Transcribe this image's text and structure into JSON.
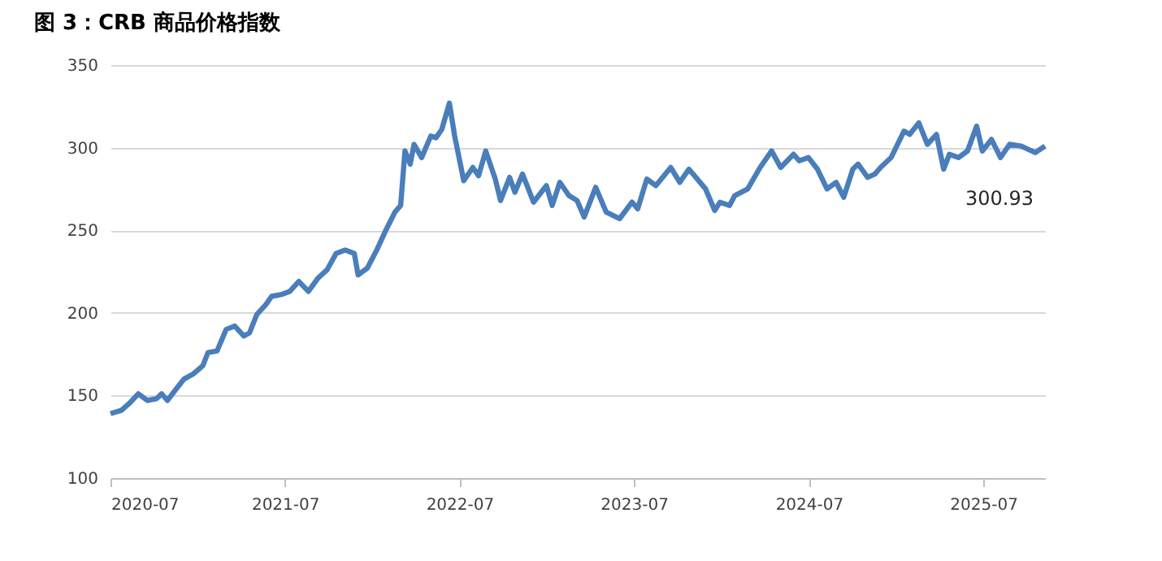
{
  "chart_data": {
    "type": "line",
    "title": "图 3：CRB 商品价格指数",
    "x": [
      "2020-07-01",
      "2020-07-24",
      "2020-08-12",
      "2020-08-28",
      "2020-09-16",
      "2020-10-05",
      "2020-10-16",
      "2020-10-28",
      "2020-11-13",
      "2020-12-02",
      "2020-12-21",
      "2021-01-10",
      "2021-01-21",
      "2021-02-09",
      "2021-02-28",
      "2021-03-18",
      "2021-04-06",
      "2021-04-18",
      "2021-05-03",
      "2021-05-22",
      "2021-06-03",
      "2021-06-22",
      "2021-07-11",
      "2021-07-30",
      "2021-08-19",
      "2021-09-08",
      "2021-09-27",
      "2021-10-16",
      "2021-11-04",
      "2021-11-23",
      "2021-12-01",
      "2021-12-20",
      "2022-01-09",
      "2022-01-28",
      "2022-02-16",
      "2022-02-28",
      "2022-03-09",
      "2022-03-20",
      "2022-03-28",
      "2022-04-13",
      "2022-05-02",
      "2022-05-13",
      "2022-05-25",
      "2022-06-10",
      "2022-06-21",
      "2022-07-10",
      "2022-07-29",
      "2022-08-10",
      "2022-08-25",
      "2022-09-14",
      "2022-09-25",
      "2022-10-14",
      "2022-10-25",
      "2022-11-10",
      "2022-12-03",
      "2022-12-30",
      "2023-01-11",
      "2023-01-27",
      "2023-02-15",
      "2023-03-04",
      "2023-03-19",
      "2023-04-12",
      "2023-05-04",
      "2023-06-01",
      "2023-06-27",
      "2023-07-09",
      "2023-07-28",
      "2023-08-16",
      "2023-09-16",
      "2023-10-05",
      "2023-10-24",
      "2023-11-28",
      "2023-12-17",
      "2023-12-28",
      "2024-01-17",
      "2024-01-28",
      "2024-02-24",
      "2024-03-21",
      "2024-04-14",
      "2024-05-03",
      "2024-05-30",
      "2024-06-11",
      "2024-06-30",
      "2024-07-19",
      "2024-08-08",
      "2024-08-27",
      "2024-09-12",
      "2024-10-01",
      "2024-10-12",
      "2024-11-01",
      "2024-11-16",
      "2024-11-28",
      "2024-12-20",
      "2025-01-16",
      "2025-01-28",
      "2025-02-16",
      "2025-03-06",
      "2025-03-25",
      "2025-04-09",
      "2025-04-21",
      "2025-05-10",
      "2025-05-29",
      "2025-06-17",
      "2025-06-29",
      "2025-07-18",
      "2025-08-06",
      "2025-08-25",
      "2025-09-18",
      "2025-10-18",
      "2025-11-07"
    ],
    "series": [
      {
        "color": "#4a7ebb",
        "values": [
          139,
          141,
          146,
          151,
          147,
          148,
          151,
          147,
          153,
          160,
          163,
          168,
          176,
          177,
          190,
          192,
          186,
          188,
          199,
          205,
          210,
          211,
          213,
          219,
          213,
          221,
          226,
          236,
          238,
          236,
          223,
          227,
          238,
          250,
          261,
          265,
          298,
          290,
          302,
          294,
          307,
          306,
          311,
          327,
          307,
          280,
          288,
          283,
          298,
          281,
          268,
          282,
          273,
          284,
          267,
          277,
          265,
          279,
          271,
          268,
          258,
          276,
          261,
          257,
          267,
          263,
          281,
          277,
          288,
          279,
          287,
          275,
          262,
          267,
          265,
          271,
          275,
          288,
          298,
          288,
          296,
          292,
          294,
          287,
          275,
          279,
          270,
          287,
          290,
          282,
          284,
          288,
          294,
          310,
          308,
          315,
          302,
          308,
          287,
          296,
          294,
          298,
          313,
          298,
          305,
          294,
          302,
          301,
          297,
          300.93
        ]
      }
    ],
    "annotations": [
      {
        "text": "300.93",
        "x": "2025-11-07",
        "y": 300.93
      }
    ],
    "xlim": [
      "2020-07-01",
      "2025-11-07"
    ],
    "xticks": [
      {
        "value": "2020-07",
        "label": "2020-07"
      },
      {
        "value": "2021-07",
        "label": "2021-07"
      },
      {
        "value": "2022-07",
        "label": "2022-07"
      },
      {
        "value": "2023-07",
        "label": "2023-07"
      },
      {
        "value": "2024-07",
        "label": "2024-07"
      },
      {
        "value": "2025-07",
        "label": "2025-07"
      }
    ],
    "ylim": [
      100,
      350
    ],
    "yticks": [
      100,
      150,
      200,
      250,
      300,
      350
    ],
    "grid": "y",
    "marker": "none",
    "line_style": "solid"
  }
}
